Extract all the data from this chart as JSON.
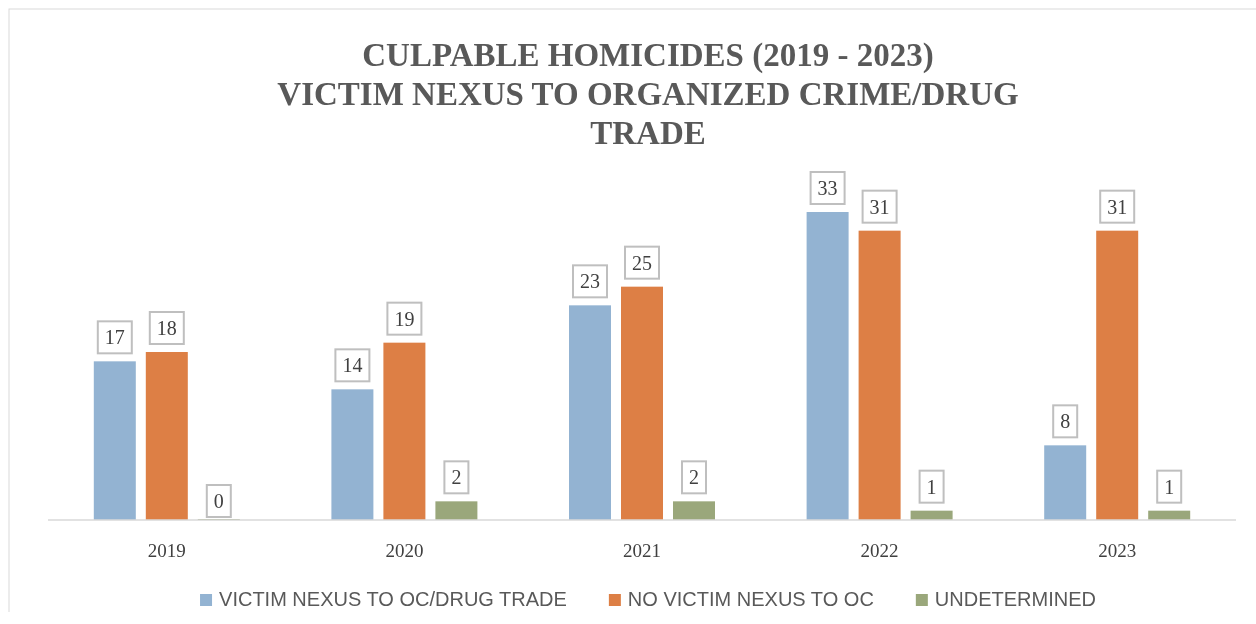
{
  "chart_data": {
    "type": "bar",
    "title": "CULPABLE HOMICIDES (2019 - 2023)\nVICTIM NEXUS TO ORGANIZED CRIME/DRUG\nTRADE",
    "categories": [
      "2019",
      "2020",
      "2021",
      "2022",
      "2023"
    ],
    "series": [
      {
        "name": "VICTIM NEXUS TO OC/DRUG TRADE",
        "color": "#93b3d2",
        "values": [
          17,
          14,
          23,
          33,
          8
        ]
      },
      {
        "name": "NO VICTIM NEXUS TO OC",
        "color": "#dd7f45",
        "values": [
          18,
          19,
          25,
          31,
          31
        ]
      },
      {
        "name": "UNDETERMINED",
        "color": "#9aa77b",
        "values": [
          0,
          2,
          2,
          1,
          1
        ]
      }
    ],
    "data_labels": true,
    "legend": "bottom"
  }
}
